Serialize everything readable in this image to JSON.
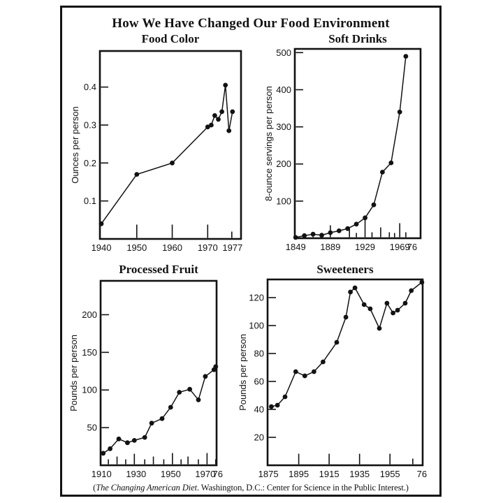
{
  "page": {
    "title": "How We Have Changed Our Food Environment",
    "caption": {
      "open": "(",
      "source_italic": "The Changing American Diet",
      "rest": ". Washington, D.C.: Center for Science in the Public Interest.)"
    }
  },
  "colors": {
    "ink": "#121212",
    "paper": "#ffffff"
  },
  "chart_data": [
    {
      "id": "food-color",
      "type": "line",
      "title": "Food Color",
      "ylabel": "Ounces per person",
      "x": [
        1940,
        1950,
        1960,
        1970,
        1971,
        1972,
        1973,
        1974,
        1975,
        1976,
        1977
      ],
      "y": [
        0.04,
        0.17,
        0.2,
        0.295,
        0.3,
        0.325,
        0.315,
        0.335,
        0.405,
        0.285,
        0.335
      ],
      "xlim": [
        1939.6,
        1979.4
      ],
      "ylim": [
        0,
        0.495
      ],
      "grid": false,
      "legend": "none",
      "yticks": [
        {
          "v": 0.1,
          "label": "0.1"
        },
        {
          "v": 0.2,
          "label": "0.2"
        },
        {
          "v": 0.3,
          "label": "0.3"
        },
        {
          "v": 0.4,
          "label": "0.4"
        }
      ],
      "xticks": [
        {
          "year": 1950,
          "h": 19
        },
        {
          "year": 1960,
          "h": 19
        },
        {
          "year": 1970,
          "h": 19
        },
        {
          "year": 1976.8,
          "h": 9
        }
      ],
      "xtick_labels": [
        {
          "year": 1940,
          "label": "1940"
        },
        {
          "year": 1950,
          "label": "1950"
        },
        {
          "year": 1960,
          "label": "1960"
        },
        {
          "year": 1970,
          "label": "1970"
        },
        {
          "year": 1977,
          "label": "1977"
        }
      ]
    },
    {
      "id": "soft-drinks",
      "type": "line",
      "title": "Soft Drinks",
      "ylabel": "8-ounce servings per person",
      "x": [
        1849,
        1859,
        1869,
        1879,
        1889,
        1899,
        1909,
        1919,
        1929,
        1939,
        1949,
        1959,
        1969,
        1976
      ],
      "y": [
        2,
        7,
        11,
        8,
        15,
        20,
        26,
        38,
        55,
        90,
        178,
        203,
        340,
        490
      ],
      "xlim": [
        1848,
        1993
      ],
      "ylim": [
        0,
        510
      ],
      "grid": false,
      "legend": "none",
      "yticks": [
        {
          "v": 100,
          "label": "100"
        },
        {
          "v": 200,
          "label": "200"
        },
        {
          "v": 300,
          "label": "300"
        },
        {
          "v": 400,
          "label": "400"
        },
        {
          "v": 500,
          "label": "500"
        }
      ],
      "xticks": [
        {
          "year": 1869,
          "h": 7
        },
        {
          "year": 1889,
          "h": 17
        },
        {
          "year": 1911,
          "h": 11
        },
        {
          "year": 1919,
          "h": 6
        },
        {
          "year": 1929,
          "h": 25
        },
        {
          "year": 1937,
          "h": 7
        },
        {
          "year": 1947,
          "h": 14
        },
        {
          "year": 1957,
          "h": 7
        },
        {
          "year": 1963,
          "h": 6
        },
        {
          "year": 1969,
          "h": 20
        },
        {
          "year": 1976,
          "h": 7
        }
      ],
      "xtick_labels": [
        {
          "year": 1849,
          "label": "1849"
        },
        {
          "year": 1889,
          "label": "1889"
        },
        {
          "year": 1929,
          "label": "1929"
        },
        {
          "year": 1969,
          "label": "1969"
        },
        {
          "year": 1976,
          "label": "76",
          "dx": 9
        }
      ]
    },
    {
      "id": "processed-fruit",
      "type": "line",
      "title": "Processed Fruit",
      "ylabel": "Pounds per person",
      "x": [
        1911,
        1915,
        1920,
        1925,
        1929,
        1935,
        1939,
        1945,
        1950,
        1955,
        1961,
        1966,
        1970,
        1975,
        1976
      ],
      "y": [
        16,
        22,
        35,
        30,
        33,
        37,
        56,
        62,
        77,
        97,
        101,
        87,
        118,
        127,
        131
      ],
      "xlim": [
        1909.5,
        1976.5
      ],
      "ylim": [
        0,
        245
      ],
      "grid": false,
      "legend": "none",
      "yticks": [
        {
          "v": 50,
          "label": "50"
        },
        {
          "v": 100,
          "label": "100"
        },
        {
          "v": 150,
          "label": "150"
        },
        {
          "v": 200,
          "label": "200"
        }
      ],
      "xticks": [
        {
          "year": 1914,
          "h": 7
        },
        {
          "year": 1919,
          "h": 11
        },
        {
          "year": 1924,
          "h": 7
        },
        {
          "year": 1929,
          "h": 15
        },
        {
          "year": 1935,
          "h": 7
        },
        {
          "year": 1940,
          "h": 11
        },
        {
          "year": 1946,
          "h": 7
        },
        {
          "year": 1951,
          "h": 16
        },
        {
          "year": 1956,
          "h": 7
        },
        {
          "year": 1960,
          "h": 11
        },
        {
          "year": 1966,
          "h": 7
        },
        {
          "year": 1971,
          "h": 16
        },
        {
          "year": 1976,
          "h": 7
        }
      ],
      "xtick_labels": [
        {
          "year": 1910,
          "label": "1910"
        },
        {
          "year": 1930,
          "label": "1930"
        },
        {
          "year": 1950,
          "label": "1950"
        },
        {
          "year": 1970,
          "label": "1970"
        },
        {
          "year": 1976,
          "label": "76",
          "dx": 3
        }
      ]
    },
    {
      "id": "sweeteners",
      "type": "line",
      "title": "Sweeteners",
      "ylabel": "Pounds per person",
      "x": [
        1877,
        1881,
        1886,
        1893,
        1899,
        1905,
        1911,
        1920,
        1926,
        1929,
        1932,
        1938,
        1942,
        1948,
        1953,
        1957,
        1960,
        1965,
        1969,
        1976
      ],
      "y": [
        42,
        43,
        49,
        67,
        64,
        67,
        74,
        88,
        106,
        124,
        127,
        115,
        112,
        98,
        116,
        109,
        111,
        116,
        125,
        131
      ],
      "xlim": [
        1874.5,
        1976.5
      ],
      "ylim": [
        0,
        133
      ],
      "grid": false,
      "legend": "none",
      "yticks": [
        {
          "v": 20,
          "label": "20"
        },
        {
          "v": 40,
          "label": "40"
        },
        {
          "v": 60,
          "label": "60"
        },
        {
          "v": 80,
          "label": "80"
        },
        {
          "v": 100,
          "label": "100"
        },
        {
          "v": 120,
          "label": "120"
        }
      ],
      "xticks": [
        {
          "year": 1895,
          "h": 15
        },
        {
          "year": 1915,
          "h": 15
        },
        {
          "year": 1935,
          "h": 15
        },
        {
          "year": 1955,
          "h": 15
        },
        {
          "year": 1970,
          "h": 8
        }
      ],
      "xtick_labels": [
        {
          "year": 1875,
          "label": "1875"
        },
        {
          "year": 1895,
          "label": "1895"
        },
        {
          "year": 1915,
          "label": "1915"
        },
        {
          "year": 1935,
          "label": "1935"
        },
        {
          "year": 1955,
          "label": "1955"
        },
        {
          "year": 1976,
          "label": "76"
        }
      ]
    }
  ]
}
